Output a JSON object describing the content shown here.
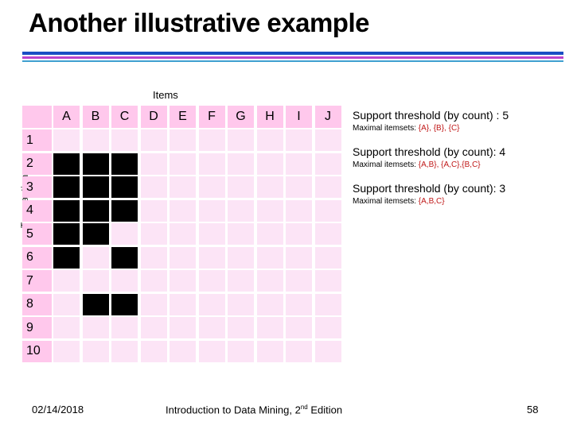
{
  "slide": {
    "title": "Another illustrative example",
    "page_number": "58",
    "date": "02/14/2018",
    "book_prefix": "Introduction to Data Mining, 2",
    "book_sup": "nd",
    "book_suffix": " Edition"
  },
  "axes": {
    "items_label": "Items",
    "transactions_label": "Transactions"
  },
  "matrix": {
    "columns": [
      "A",
      "B",
      "C",
      "D",
      "E",
      "F",
      "G",
      "H",
      "I",
      "J"
    ],
    "rows": [
      "1",
      "2",
      "3",
      "4",
      "5",
      "6",
      "7",
      "8",
      "9",
      "10"
    ],
    "cells": [
      [
        0,
        0,
        0,
        0,
        0,
        0,
        0,
        0,
        0,
        0
      ],
      [
        1,
        1,
        1,
        0,
        0,
        0,
        0,
        0,
        0,
        0
      ],
      [
        1,
        1,
        1,
        0,
        0,
        0,
        0,
        0,
        0,
        0
      ],
      [
        1,
        1,
        1,
        0,
        0,
        0,
        0,
        0,
        0,
        0
      ],
      [
        1,
        1,
        0,
        0,
        0,
        0,
        0,
        0,
        0,
        0
      ],
      [
        1,
        0,
        1,
        0,
        0,
        0,
        0,
        0,
        0,
        0
      ],
      [
        0,
        0,
        0,
        0,
        0,
        0,
        0,
        0,
        0,
        0
      ],
      [
        0,
        1,
        1,
        0,
        0,
        0,
        0,
        0,
        0,
        0
      ],
      [
        0,
        0,
        0,
        0,
        0,
        0,
        0,
        0,
        0,
        0
      ],
      [
        0,
        0,
        0,
        0,
        0,
        0,
        0,
        0,
        0,
        0
      ]
    ]
  },
  "cases": [
    {
      "threshold": "Support threshold (by count) : 5",
      "maximal_label": "Maximal itemsets: ",
      "maximal_sets": "{A}, {B}, {C}"
    },
    {
      "threshold": "Support threshold (by count): 4",
      "maximal_label": "Maximal itemsets: ",
      "maximal_sets": "{A,B}, {A,C},{B,C}"
    },
    {
      "threshold": "Support threshold (by count): 3",
      "maximal_label": "Maximal itemsets: ",
      "maximal_sets": "{A,B,C}"
    }
  ],
  "colors": {
    "header_bg": "#ffc8ec",
    "cell_empty": "#fce4f6",
    "cell_filled": "#000000",
    "highlight_text": "#c01818"
  }
}
